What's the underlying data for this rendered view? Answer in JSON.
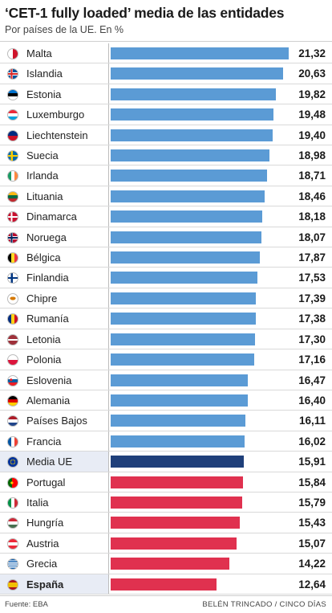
{
  "title": "‘CET-1 fully loaded’ media de las entidades",
  "subtitle": "Por países de la UE. En %",
  "source": "Fuente: EBA",
  "credit": "BELÉN TRINCADO / CINCO DÍAS",
  "colors": {
    "above_average": "#5b9bd5",
    "average": "#1f3f7a",
    "below_average": "#e0314f"
  },
  "chart_data": {
    "type": "bar",
    "orientation": "horizontal",
    "xlim": [
      0,
      21.32
    ],
    "categories": [
      "Malta",
      "Islandia",
      "Estonia",
      "Luxemburgo",
      "Liechtenstein",
      "Suecia",
      "Irlanda",
      "Lituania",
      "Dinamarca",
      "Noruega",
      "Bélgica",
      "Finlandia",
      "Chipre",
      "Rumanía",
      "Letonia",
      "Polonia",
      "Eslovenia",
      "Alemania",
      "Países Bajos",
      "Francia",
      "Media UE",
      "Portugal",
      "Italia",
      "Hungría",
      "Austria",
      "Grecia",
      "España"
    ],
    "values": [
      21.32,
      20.63,
      19.82,
      19.48,
      19.4,
      18.98,
      18.71,
      18.46,
      18.18,
      18.07,
      17.87,
      17.53,
      17.39,
      17.38,
      17.3,
      17.16,
      16.47,
      16.4,
      16.11,
      16.02,
      15.91,
      15.84,
      15.79,
      15.43,
      15.07,
      14.22,
      12.64
    ],
    "value_labels": [
      "21,32",
      "20,63",
      "19,82",
      "19,48",
      "19,40",
      "18,98",
      "18,71",
      "18,46",
      "18,18",
      "18,07",
      "17,87",
      "17,53",
      "17,39",
      "17,38",
      "17,30",
      "17,16",
      "16,47",
      "16,40",
      "16,11",
      "16,02",
      "15,91",
      "15,84",
      "15,79",
      "15,43",
      "15,07",
      "14,22",
      "12,64"
    ],
    "groups": [
      "above",
      "above",
      "above",
      "above",
      "above",
      "above",
      "above",
      "above",
      "above",
      "above",
      "above",
      "above",
      "above",
      "above",
      "above",
      "above",
      "above",
      "above",
      "above",
      "above",
      "average",
      "below",
      "below",
      "below",
      "below",
      "below",
      "below"
    ],
    "highlight": [
      "Media UE",
      "España"
    ],
    "flag_icons": [
      "flag-malta-icon",
      "flag-iceland-icon",
      "flag-estonia-icon",
      "flag-luxembourg-icon",
      "flag-liechtenstein-icon",
      "flag-sweden-icon",
      "flag-ireland-icon",
      "flag-lithuania-icon",
      "flag-denmark-icon",
      "flag-norway-icon",
      "flag-belgium-icon",
      "flag-finland-icon",
      "flag-cyprus-icon",
      "flag-romania-icon",
      "flag-latvia-icon",
      "flag-poland-icon",
      "flag-slovenia-icon",
      "flag-germany-icon",
      "flag-netherlands-icon",
      "flag-france-icon",
      "flag-eu-icon",
      "flag-portugal-icon",
      "flag-italy-icon",
      "flag-hungary-icon",
      "flag-austria-icon",
      "flag-greece-icon",
      "flag-spain-icon"
    ],
    "grid": false,
    "legend": false
  }
}
